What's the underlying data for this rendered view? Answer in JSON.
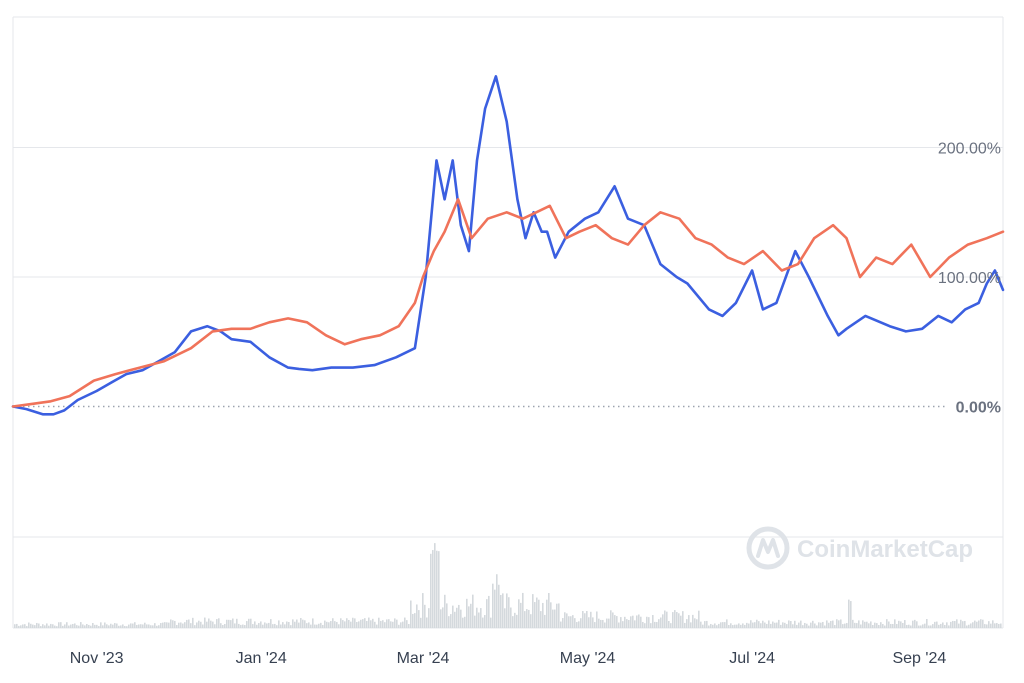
{
  "watermark": {
    "text": "CoinMarketCap"
  },
  "colors": {
    "series_blue": "#3b5fe0",
    "series_orange": "#f0735a",
    "grid": "#e5e7eb",
    "volume": "#d4d9dd",
    "zero_line": "#9ca3af"
  },
  "chart_data": {
    "type": "line",
    "title": "",
    "xlabel": "",
    "ylabel": "",
    "y_unit": "%",
    "ylim": [
      -100,
      300
    ],
    "y_ticks": [
      {
        "value": 0,
        "label": "0.00%"
      },
      {
        "value": 100,
        "label": "100.00%"
      },
      {
        "value": 200,
        "label": "200.00%"
      }
    ],
    "x_range": [
      "2023-10-01",
      "2024-10-02"
    ],
    "x_ticks": [
      {
        "date": "2023-11-01",
        "label": "Nov '23"
      },
      {
        "date": "2024-01-01",
        "label": "Jan '24"
      },
      {
        "date": "2024-03-01",
        "label": "Mar '24"
      },
      {
        "date": "2024-05-01",
        "label": "May '24"
      },
      {
        "date": "2024-07-01",
        "label": "Jul '24"
      },
      {
        "date": "2024-09-01",
        "label": "Sep '24"
      }
    ],
    "grid": true,
    "legend": "none",
    "series": [
      {
        "color": "#3b5fe0",
        "x": [
          "2023-10-01",
          "2023-10-06",
          "2023-10-12",
          "2023-10-16",
          "2023-10-20",
          "2023-10-25",
          "2023-11-01",
          "2023-11-06",
          "2023-11-12",
          "2023-11-18",
          "2023-11-24",
          "2023-11-30",
          "2023-12-06",
          "2023-12-12",
          "2023-12-17",
          "2023-12-21",
          "2023-12-28",
          "2024-01-04",
          "2024-01-11",
          "2024-01-15",
          "2024-01-20",
          "2024-01-27",
          "2024-02-04",
          "2024-02-12",
          "2024-02-20",
          "2024-02-27",
          "2024-03-02",
          "2024-03-06",
          "2024-03-09",
          "2024-03-12",
          "2024-03-15",
          "2024-03-18",
          "2024-03-21",
          "2024-03-24",
          "2024-03-28",
          "2024-04-01",
          "2024-04-05",
          "2024-04-08",
          "2024-04-11",
          "2024-04-14",
          "2024-04-16",
          "2024-04-19",
          "2024-04-24",
          "2024-04-30",
          "2024-05-05",
          "2024-05-11",
          "2024-05-16",
          "2024-05-22",
          "2024-05-28",
          "2024-06-03",
          "2024-06-07",
          "2024-06-15",
          "2024-06-20",
          "2024-06-25",
          "2024-07-01",
          "2024-07-05",
          "2024-07-10",
          "2024-07-17",
          "2024-07-22",
          "2024-07-29",
          "2024-08-02",
          "2024-08-05",
          "2024-08-12",
          "2024-08-21",
          "2024-08-27",
          "2024-09-02",
          "2024-09-08",
          "2024-09-13",
          "2024-09-18",
          "2024-09-23",
          "2024-09-26",
          "2024-09-29",
          "2024-10-02"
        ],
        "y": [
          0,
          -2,
          -6,
          -6,
          -3,
          5,
          12,
          18,
          25,
          28,
          35,
          42,
          58,
          62,
          58,
          52,
          50,
          38,
          30,
          29,
          28,
          30,
          30,
          32,
          38,
          45,
          100,
          190,
          160,
          190,
          140,
          120,
          190,
          230,
          255,
          220,
          160,
          130,
          150,
          135,
          135,
          115,
          135,
          145,
          150,
          170,
          145,
          140,
          110,
          100,
          95,
          75,
          70,
          80,
          105,
          75,
          80,
          120,
          100,
          70,
          55,
          60,
          70,
          62,
          58,
          60,
          70,
          65,
          75,
          80,
          95,
          105,
          90
        ]
      },
      {
        "color": "#f0735a",
        "x": [
          "2023-10-01",
          "2023-10-08",
          "2023-10-15",
          "2023-10-22",
          "2023-10-31",
          "2023-11-08",
          "2023-11-17",
          "2023-11-26",
          "2023-12-06",
          "2023-12-14",
          "2023-12-21",
          "2023-12-28",
          "2024-01-04",
          "2024-01-11",
          "2024-01-18",
          "2024-01-25",
          "2024-02-01",
          "2024-02-07",
          "2024-02-14",
          "2024-02-21",
          "2024-02-27",
          "2024-03-01",
          "2024-03-05",
          "2024-03-09",
          "2024-03-14",
          "2024-03-19",
          "2024-03-25",
          "2024-04-01",
          "2024-04-07",
          "2024-04-12",
          "2024-04-17",
          "2024-04-23",
          "2024-04-28",
          "2024-05-04",
          "2024-05-10",
          "2024-05-16",
          "2024-05-22",
          "2024-05-28",
          "2024-06-04",
          "2024-06-10",
          "2024-06-16",
          "2024-06-22",
          "2024-06-28",
          "2024-07-05",
          "2024-07-12",
          "2024-07-18",
          "2024-07-24",
          "2024-07-31",
          "2024-08-05",
          "2024-08-10",
          "2024-08-16",
          "2024-08-22",
          "2024-08-29",
          "2024-09-05",
          "2024-09-12",
          "2024-09-19",
          "2024-09-26",
          "2024-10-02"
        ],
        "y": [
          0,
          2,
          4,
          8,
          20,
          25,
          30,
          35,
          45,
          58,
          60,
          60,
          65,
          68,
          65,
          55,
          48,
          52,
          55,
          62,
          80,
          100,
          120,
          135,
          160,
          130,
          145,
          150,
          145,
          150,
          155,
          130,
          135,
          140,
          130,
          125,
          140,
          150,
          145,
          130,
          125,
          115,
          110,
          120,
          105,
          110,
          130,
          140,
          130,
          100,
          115,
          110,
          125,
          100,
          115,
          125,
          130,
          135
        ]
      }
    ]
  }
}
